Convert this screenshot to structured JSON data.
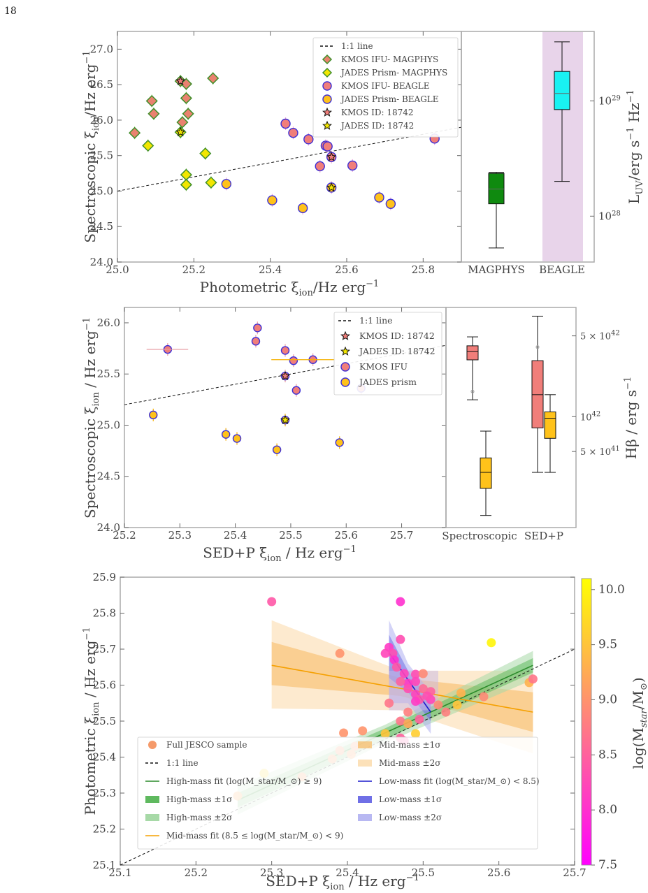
{
  "page_number": "18",
  "chart_data": [
    {
      "type": "scatter",
      "xlabel": "Photometric ξ_ion/Hz erg^-1",
      "ylabel": "Spectroscopic ξ_ion/Hz erg^-1",
      "xlim": [
        25.0,
        25.9
      ],
      "ylim": [
        24.0,
        27.25
      ],
      "x_ticks": [
        "25.0",
        "25.2",
        "25.4",
        "25.6",
        "25.8"
      ],
      "y_ticks": [
        "24.0",
        "24.5",
        "25.0",
        "25.5",
        "26.0",
        "26.5",
        "27.0"
      ],
      "legend_position": "top-right",
      "legend": [
        "1:1 line",
        "KMOS IFU- MAGPHYS",
        "JADES Prism- MAGPHYS",
        "KMOS IFU- BEAGLE",
        "JADES Prism- BEAGLE",
        "KMOS ID: 18742",
        "JADES ID: 18742"
      ],
      "series": [
        {
          "name": "KMOS IFU- MAGPHYS",
          "color": "#e9826f",
          "edge": "#3f8f2a",
          "marker": "diamond",
          "points": [
            [
              25.045,
              25.82
            ],
            [
              25.09,
              26.27
            ],
            [
              25.095,
              26.09
            ],
            [
              25.165,
              26.55
            ],
            [
              25.17,
              25.97
            ],
            [
              25.18,
              26.51
            ],
            [
              25.18,
              26.31
            ],
            [
              25.185,
              26.09
            ],
            [
              25.25,
              26.59
            ]
          ]
        },
        {
          "name": "JADES Prism- MAGPHYS",
          "color": "#f2e600",
          "edge": "#3f8f2a",
          "marker": "diamond",
          "points": [
            [
              25.08,
              25.64
            ],
            [
              25.165,
              25.83
            ],
            [
              25.18,
              25.23
            ],
            [
              25.18,
              25.09
            ],
            [
              25.23,
              25.53
            ],
            [
              25.245,
              25.12
            ]
          ]
        },
        {
          "name": "KMOS IFU- BEAGLE",
          "color": "#f07e7a",
          "edge": "#3d2fd6",
          "marker": "circle",
          "points": [
            [
              25.44,
              25.95
            ],
            [
              25.46,
              25.82
            ],
            [
              25.5,
              25.73
            ],
            [
              25.53,
              25.35
            ],
            [
              25.545,
              25.64
            ],
            [
              25.55,
              25.63
            ],
            [
              25.56,
              25.48
            ],
            [
              25.615,
              25.36
            ],
            [
              25.83,
              25.74
            ]
          ]
        },
        {
          "name": "JADES Prism- BEAGLE",
          "color": "#ffc21a",
          "edge": "#3d2fd6",
          "marker": "circle",
          "points": [
            [
              25.285,
              25.1
            ],
            [
              25.405,
              24.87
            ],
            [
              25.485,
              24.76
            ],
            [
              25.56,
              25.05
            ],
            [
              25.685,
              24.91
            ],
            [
              25.715,
              24.82
            ]
          ]
        },
        {
          "name": "KMOS ID: 18742",
          "color": "#f07e7a",
          "marker": "star",
          "points": [
            [
              25.165,
              26.55
            ],
            [
              25.56,
              25.48
            ]
          ]
        },
        {
          "name": "JADES ID: 18742",
          "color": "#f2e600",
          "marker": "star",
          "points": [
            [
              25.165,
              25.83
            ],
            [
              25.56,
              25.05
            ]
          ]
        }
      ]
    },
    {
      "type": "box",
      "categories": [
        "MAGPHYS",
        "BEAGLE"
      ],
      "ylabel": "L_UV/erg s^-1 Hz^-1",
      "yscale": "log",
      "ylim": [
        4e+27,
        4e+29
      ],
      "y_ticks": [
        "10^28",
        "10^29"
      ],
      "highlight_category": "BEAGLE",
      "highlight_color": "#e8d4ea",
      "boxes": [
        {
          "name": "MAGPHYS",
          "color": "#0f8a0f",
          "whisker_low": 5.3e+27,
          "q1": 1.28e+28,
          "median": 1.72e+28,
          "q3": 2.35e+28,
          "whisker_high": 2.4e+28
        },
        {
          "name": "BEAGLE",
          "color": "#19f2f2",
          "whisker_low": 2e+28,
          "q1": 8.4e+28,
          "median": 1.16e+29,
          "q3": 1.8e+29,
          "whisker_high": 3.25e+29
        }
      ]
    },
    {
      "type": "scatter",
      "xlabel": "SED+P ξ_ion / Hz erg^-1",
      "ylabel": "Spectroscopic ξ_ion / Hz erg^-1",
      "xlim": [
        25.2,
        25.78
      ],
      "ylim": [
        24.0,
        26.15
      ],
      "x_ticks": [
        "25.2",
        "25.3",
        "25.4",
        "25.5",
        "25.6",
        "25.7"
      ],
      "y_ticks": [
        "24.0",
        "24.5",
        "25.0",
        "25.5",
        "26.0"
      ],
      "legend_position": "top-right",
      "legend": [
        "1:1 line",
        "KMOS ID: 18742",
        "JADES ID: 18742",
        "KMOS IFU",
        "JADES prism"
      ],
      "series": [
        {
          "name": "KMOS IFU",
          "color": "#f07e7a",
          "edge": "#3d2fd6",
          "marker": "circle",
          "points": [
            [
              25.278,
              25.74
            ],
            [
              25.437,
              25.82
            ],
            [
              25.44,
              25.95
            ],
            [
              25.49,
              25.73
            ],
            [
              25.49,
              25.48
            ],
            [
              25.505,
              25.63
            ],
            [
              25.51,
              25.34
            ],
            [
              25.54,
              25.64
            ],
            [
              25.627,
              25.36
            ]
          ]
        },
        {
          "name": "JADES prism",
          "color": "#ffc21a",
          "edge": "#3d2fd6",
          "marker": "circle",
          "points": [
            [
              25.252,
              25.1
            ],
            [
              25.383,
              24.91
            ],
            [
              25.403,
              24.87
            ],
            [
              25.475,
              24.76
            ],
            [
              25.49,
              25.05
            ],
            [
              25.588,
              24.83
            ]
          ]
        },
        {
          "name": "KMOS ID: 18742",
          "color": "#f07e7a",
          "marker": "star",
          "points": [
            [
              25.49,
              25.48
            ]
          ]
        },
        {
          "name": "JADES ID: 18742",
          "color": "#f2e600",
          "marker": "star",
          "points": [
            [
              25.49,
              25.05
            ]
          ]
        }
      ]
    },
    {
      "type": "box",
      "categories": [
        "Spectroscopic",
        "SED+P"
      ],
      "ylabel": "Hβ / erg s^-1",
      "yscale": "log",
      "ylim": [
        1.1e+41,
        8.8e+42
      ],
      "y_ticks": [
        "5 × 10^41",
        "10^42",
        "5 × 10^42"
      ],
      "boxes": [
        {
          "name": "Spectroscopic-KMOS",
          "color": "#f07e7a",
          "whisker_low": 1.4e+42,
          "q1": 3.1e+42,
          "median": 3.65e+42,
          "q3": 4.1e+42,
          "whisker_high": 4.9e+42,
          "outliers": [
            1.65e+42
          ]
        },
        {
          "name": "Spectroscopic-JADES",
          "color": "#ffc21a",
          "whisker_low": 1.4e+41,
          "q1": 2.4e+41,
          "median": 3.3e+41,
          "q3": 4.4e+41,
          "whisker_high": 7.5e+41
        },
        {
          "name": "SED+P-KMOS",
          "color": "#f07e7a",
          "whisker_low": 3.3e+41,
          "q1": 8e+41,
          "median": 1.55e+42,
          "q3": 3.05e+42,
          "whisker_high": 7.4e+42,
          "outliers": [
            4e+42
          ]
        },
        {
          "name": "SED+P-JADES",
          "color": "#ffc21a",
          "whisker_low": 3.3e+41,
          "q1": 6.5e+41,
          "median": 9.7e+41,
          "q3": 1.1e+42,
          "whisker_high": 1.55e+42
        }
      ]
    },
    {
      "type": "scatter",
      "xlabel": "SED+P ξ_ion / Hz erg^-1",
      "ylabel": "Photometric ξ_ion / Hz erg^-1",
      "xlim": [
        25.1,
        25.7
      ],
      "ylim": [
        25.1,
        25.9
      ],
      "x_ticks": [
        "25.1",
        "25.2",
        "25.3",
        "25.4",
        "25.5",
        "25.6",
        "25.7"
      ],
      "y_ticks": [
        "25.1",
        "25.2",
        "25.3",
        "25.4",
        "25.5",
        "25.6",
        "25.7",
        "25.8",
        "25.9"
      ],
      "colorbar": {
        "label": "log(M_star/M_⊙)",
        "range": [
          7.5,
          10.1
        ],
        "ticks": [
          "7.5",
          "8.0",
          "8.5",
          "9.0",
          "9.5",
          "10.0"
        ],
        "colormap": "spring"
      },
      "legend_position": "bottom-left",
      "legend": [
        "Full JESCO sample",
        "1:1 line",
        "High-mass fit (log(M_star/M_⊙) ≥ 9)",
        "High-mass ±1σ",
        "High-mass ±2σ",
        "Mid-mass fit (8.5 ≤ log(M_star/M_⊙) < 9)",
        "Mid-mass ±1σ",
        "Mid-mass ±2σ",
        "Low-mass fit (log(M_star/M_⊙) < 8.5)",
        "Low-mass ±1σ",
        "Low-mass ±2σ"
      ],
      "fits": [
        {
          "name": "High-mass fit",
          "color": "#2a8a2a",
          "x": [
            25.255,
            25.645
          ],
          "y": [
            25.28,
            25.655
          ]
        },
        {
          "name": "Mid-mass fit",
          "color": "#f5a000",
          "x": [
            25.3,
            25.645
          ],
          "y": [
            25.655,
            25.525
          ]
        },
        {
          "name": "Low-mass fit",
          "color": "#1a1acc",
          "x": [
            25.455,
            25.51
          ],
          "y": [
            25.69,
            25.525
          ]
        }
      ],
      "points": [
        {
          "x": 25.3,
          "y": 25.832,
          "m": 8.4
        },
        {
          "x": 25.47,
          "y": 25.832,
          "m": 8.0
        },
        {
          "x": 25.47,
          "y": 25.727,
          "m": 8.3
        },
        {
          "x": 25.59,
          "y": 25.718,
          "m": 10.0
        },
        {
          "x": 25.39,
          "y": 25.688,
          "m": 9.0
        },
        {
          "x": 25.455,
          "y": 25.705,
          "m": 8.1
        },
        {
          "x": 25.46,
          "y": 25.688,
          "m": 8.3
        },
        {
          "x": 25.45,
          "y": 25.688,
          "m": 8.2
        },
        {
          "x": 25.462,
          "y": 25.67,
          "m": 8.0
        },
        {
          "x": 25.465,
          "y": 25.65,
          "m": 8.4
        },
        {
          "x": 25.475,
          "y": 25.632,
          "m": 8.2
        },
        {
          "x": 25.49,
          "y": 25.63,
          "m": 8.3
        },
        {
          "x": 25.5,
          "y": 25.632,
          "m": 8.9
        },
        {
          "x": 25.49,
          "y": 25.61,
          "m": 8.2
        },
        {
          "x": 25.48,
          "y": 25.605,
          "m": 8.1
        },
        {
          "x": 25.47,
          "y": 25.61,
          "m": 8.5
        },
        {
          "x": 25.455,
          "y": 25.55,
          "m": 8.7
        },
        {
          "x": 25.48,
          "y": 25.59,
          "m": 8.3
        },
        {
          "x": 25.49,
          "y": 25.575,
          "m": 8.2
        },
        {
          "x": 25.495,
          "y": 25.56,
          "m": 8.4
        },
        {
          "x": 25.5,
          "y": 25.59,
          "m": 8.6
        },
        {
          "x": 25.51,
          "y": 25.582,
          "m": 8.5
        },
        {
          "x": 25.51,
          "y": 25.56,
          "m": 8.2
        },
        {
          "x": 25.49,
          "y": 25.555,
          "m": 8.1
        },
        {
          "x": 25.505,
          "y": 25.57,
          "m": 8.3
        },
        {
          "x": 25.48,
          "y": 25.525,
          "m": 8.8
        },
        {
          "x": 25.47,
          "y": 25.5,
          "m": 8.7
        },
        {
          "x": 25.48,
          "y": 25.493,
          "m": 9.2
        },
        {
          "x": 25.47,
          "y": 25.453,
          "m": 8.5
        },
        {
          "x": 25.475,
          "y": 25.445,
          "m": 8.4
        },
        {
          "x": 25.49,
          "y": 25.465,
          "m": 9.6
        },
        {
          "x": 25.495,
          "y": 25.505,
          "m": 8.5
        },
        {
          "x": 25.52,
          "y": 25.545,
          "m": 8.9
        },
        {
          "x": 25.53,
          "y": 25.525,
          "m": 8.8
        },
        {
          "x": 25.55,
          "y": 25.578,
          "m": 9.3
        },
        {
          "x": 25.545,
          "y": 25.545,
          "m": 9.5
        },
        {
          "x": 25.58,
          "y": 25.568,
          "m": 8.9
        },
        {
          "x": 25.64,
          "y": 25.607,
          "m": 9.3
        },
        {
          "x": 25.645,
          "y": 25.617,
          "m": 8.7
        },
        {
          "x": 25.38,
          "y": 25.395,
          "m": 9.1
        },
        {
          "x": 25.39,
          "y": 25.418,
          "m": 9.0
        },
        {
          "x": 25.395,
          "y": 25.467,
          "m": 9.0
        },
        {
          "x": 25.405,
          "y": 25.408,
          "m": 9.1
        },
        {
          "x": 25.41,
          "y": 25.43,
          "m": 9.0
        },
        {
          "x": 25.42,
          "y": 25.473,
          "m": 9.0
        },
        {
          "x": 25.45,
          "y": 25.465,
          "m": 9.5
        },
        {
          "x": 25.34,
          "y": 25.345,
          "m": 9.1
        },
        {
          "x": 25.29,
          "y": 25.355,
          "m": 9.7
        },
        {
          "x": 25.255,
          "y": 25.292,
          "m": 9.2
        }
      ]
    }
  ]
}
